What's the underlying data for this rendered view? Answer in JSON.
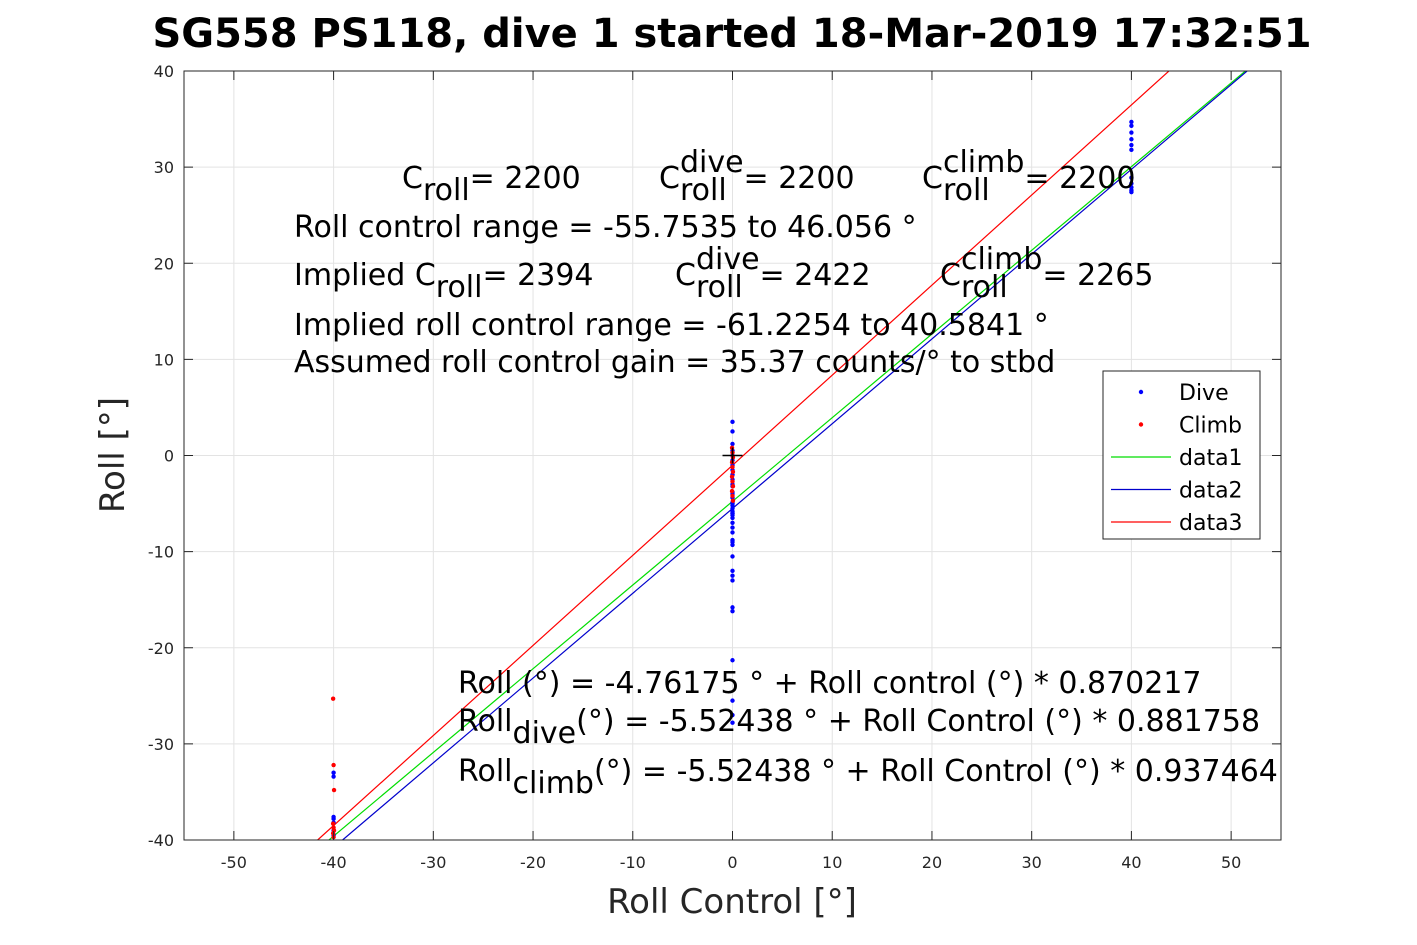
{
  "chart_data": {
    "type": "scatter",
    "title": "SG558 PS118, dive 1 started 18-Mar-2019 17:32:51",
    "xlabel": "Roll Control [°]",
    "ylabel": "Roll [°]",
    "xlim": [
      -55,
      55
    ],
    "ylim": [
      -40,
      40
    ],
    "xticks": [
      -50,
      -40,
      -30,
      -20,
      -10,
      0,
      10,
      20,
      30,
      40,
      50
    ],
    "yticks": [
      -40,
      -30,
      -20,
      -10,
      0,
      10,
      20,
      30,
      40
    ],
    "grid": true,
    "legend_position": "right",
    "colors": {
      "dive": "#0000ff",
      "climb": "#ff0000",
      "data1": "#00dd00",
      "data2": "#0000cc",
      "data3": "#ff0000",
      "zero_marker": "#000000"
    },
    "series": [
      {
        "name": "Dive",
        "kind": "points",
        "x": [
          0,
          0,
          0,
          0,
          0,
          0,
          0,
          0,
          0,
          0,
          0,
          0,
          0,
          0,
          0,
          0,
          0,
          0,
          0,
          0,
          0,
          0,
          0,
          0,
          0,
          0,
          0,
          0,
          0,
          0,
          0,
          0,
          0,
          0,
          0,
          0,
          0,
          0,
          0,
          0,
          40,
          40,
          40,
          40,
          40,
          40,
          40,
          40,
          40,
          40,
          40,
          -40,
          -40,
          -40,
          -40,
          -40,
          -40,
          -40
        ],
        "y": [
          3.5,
          2.5,
          1.2,
          0.5,
          0,
          -0.5,
          -1.5,
          -2.5,
          -3.2,
          -3.8,
          -4.4,
          -4.9,
          -5.2,
          -5.5,
          -5.8,
          -6.0,
          -6.2,
          -6.5,
          -7.0,
          -7.5,
          -8.0,
          -8.8,
          -9.3,
          -10.5,
          -12.0,
          -12.5,
          -13.0,
          -15.8,
          -16.2,
          -21.3,
          -25.5,
          -27.0,
          -27.8,
          -1.0,
          -2.0,
          -3.0,
          -4.0,
          -5.0,
          -6.0,
          -9.0,
          34.7,
          34.3,
          33.6,
          32.9,
          32.3,
          31.8,
          28.9,
          28.3,
          27.9,
          27.6,
          27.4,
          -33.0,
          -33.4,
          -37.6,
          -37.8,
          -38.2,
          -39.0,
          -39.5
        ]
      },
      {
        "name": "Climb",
        "kind": "points",
        "x": [
          0,
          0,
          0,
          0,
          0,
          0,
          0,
          0,
          0,
          0,
          0,
          0,
          -40,
          -40,
          -40,
          -40,
          -40,
          -40,
          -40,
          -40
        ],
        "y": [
          0.8,
          0.3,
          -0.2,
          -0.7,
          -1.2,
          -1.7,
          -2.2,
          -2.7,
          -3.2,
          -3.7,
          -4.2,
          -4.7,
          -25.3,
          -32.2,
          -34.8,
          -38.3,
          -38.7,
          -39.0,
          -39.3,
          -39.7
        ]
      },
      {
        "name": "data1",
        "kind": "line",
        "x": [
          -41.5,
          51.6
        ],
        "y": [
          -40.9,
          40.15
        ]
      },
      {
        "name": "data2",
        "kind": "line",
        "x": [
          -39.1,
          51.6
        ],
        "y": [
          -40.0,
          40.0
        ]
      },
      {
        "name": "data3",
        "kind": "line",
        "x": [
          -41.6,
          44.3
        ],
        "y": [
          -40.0,
          40.5
        ]
      }
    ],
    "zero_marker": {
      "x": 0,
      "y": 0
    },
    "annotations": {
      "c_roll": {
        "prefix": "C",
        "sub": "roll",
        "value": " = 2200"
      },
      "c_dive": {
        "prefix": "C",
        "sup": "dive",
        "sub": "roll",
        "value": " = 2200"
      },
      "c_climb": {
        "prefix": "C",
        "sup": "climb",
        "sub": "roll",
        "value": " = 2200"
      },
      "roll_range": "Roll control range = -55.7535 to 46.056 °",
      "implied_c_roll": {
        "prefix": "Implied C",
        "sub": "roll",
        "value": " = 2394"
      },
      "implied_c_dive": {
        "prefix": "C",
        "sup": "dive",
        "sub": "roll",
        "value": " = 2422"
      },
      "implied_c_climb": {
        "prefix": "C",
        "sup": "climb",
        "sub": "roll",
        "value": " = 2265"
      },
      "implied_range": "Implied roll control range = -61.2254 to 40.5841 °",
      "gain": "Assumed roll control gain = 35.37 counts/° to stbd",
      "fit_all": "Roll (°) = -4.76175 ° + Roll control (°) * 0.870217",
      "fit_dive": {
        "prefix": "Roll",
        "sub": "dive",
        "value": " (°) = -5.52438 ° + Roll Control (°) * 0.881758"
      },
      "fit_climb": {
        "prefix": "Roll",
        "sub": "climb",
        "value": " (°) = -5.52438 ° + Roll Control (°) * 0.937464"
      }
    }
  }
}
